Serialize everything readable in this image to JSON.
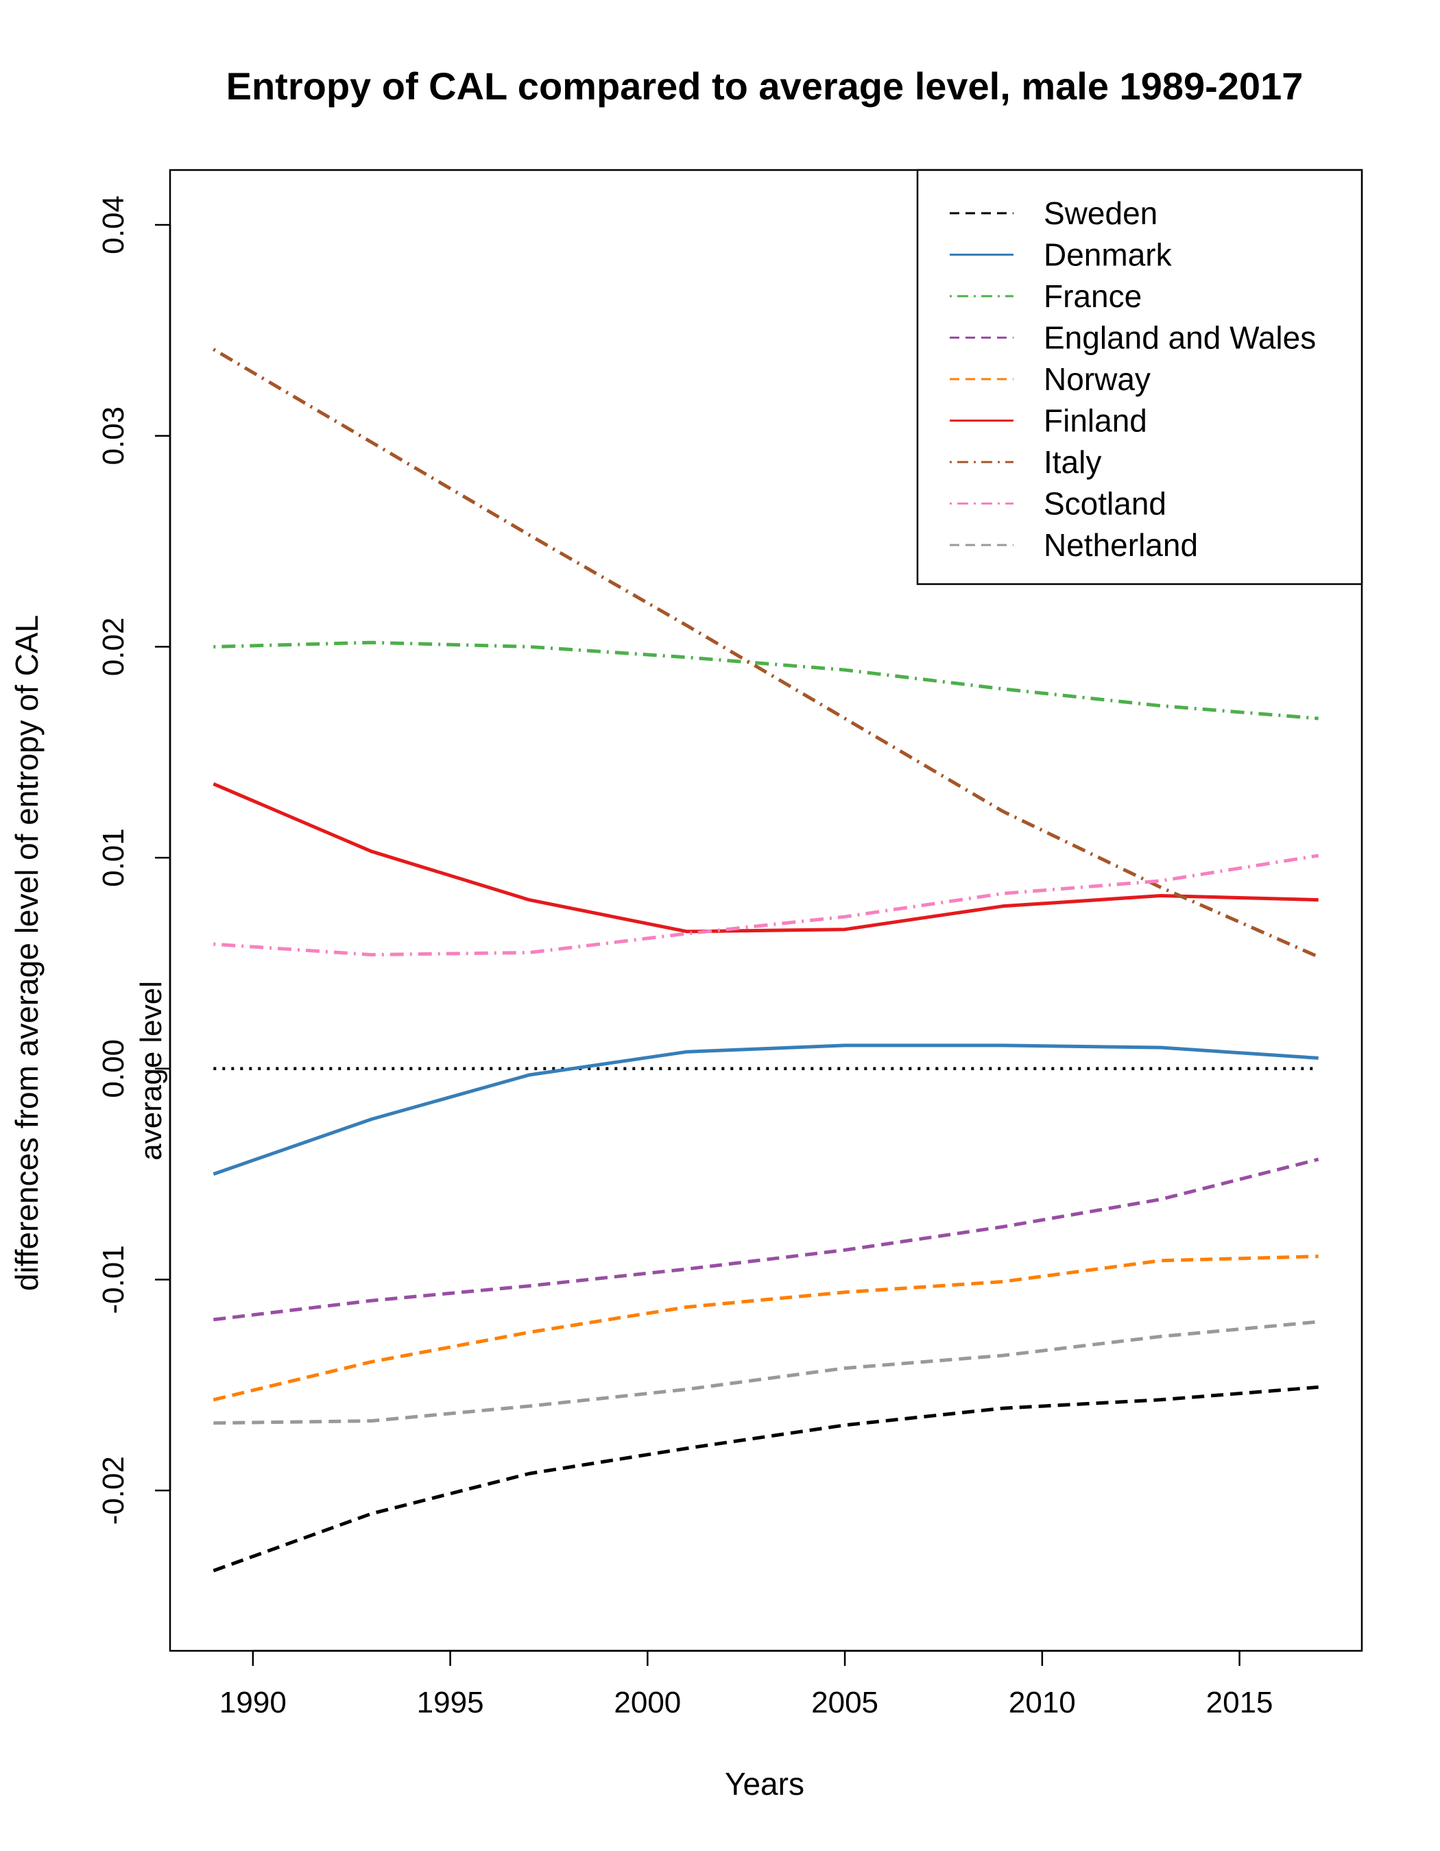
{
  "chart_data": {
    "type": "line",
    "title": "Entropy of CAL compared to average level, male 1989-2017",
    "xlabel": "Years",
    "ylabel": "differences from average level of entropy of CAL",
    "xlim": [
      1987.9,
      2018.1
    ],
    "ylim": [
      -0.0276,
      0.0426
    ],
    "xticks": [
      1990,
      1995,
      2000,
      2005,
      2010,
      2015
    ],
    "yticks": [
      -0.02,
      -0.01,
      0.0,
      0.01,
      0.02,
      0.03,
      0.04
    ],
    "ytick_labels": [
      "-0.02",
      "-0.01",
      "0.00",
      "0.01",
      "0.02",
      "0.03",
      "0.04"
    ],
    "grid": false,
    "legend_position": "top-right",
    "reference_line": {
      "label": "average level",
      "y": 0.0,
      "color": "#000000",
      "dash": "dotted"
    },
    "x": [
      1989,
      1993,
      1997,
      2001,
      2005,
      2009,
      2013,
      2017
    ],
    "series": [
      {
        "name": "Sweden",
        "color": "#000000",
        "dash": "dashed",
        "values": [
          -0.0238,
          -0.0211,
          -0.0192,
          -0.018,
          -0.0169,
          -0.0161,
          -0.0157,
          -0.0151
        ]
      },
      {
        "name": "Denmark",
        "color": "#377EB8",
        "dash": "solid",
        "values": [
          -0.005,
          -0.0024,
          -0.0003,
          0.0008,
          0.0011,
          0.0011,
          0.001,
          0.0005
        ]
      },
      {
        "name": "France",
        "color": "#4DAF4A",
        "dash": "dotdash",
        "values": [
          0.02,
          0.0202,
          0.02,
          0.0195,
          0.0189,
          0.018,
          0.0172,
          0.0166
        ]
      },
      {
        "name": "England and Wales",
        "color": "#984EA3",
        "dash": "dashed",
        "values": [
          -0.0119,
          -0.011,
          -0.0103,
          -0.0095,
          -0.0086,
          -0.0075,
          -0.0062,
          -0.0043
        ]
      },
      {
        "name": "Norway",
        "color": "#FF7F00",
        "dash": "dashed",
        "values": [
          -0.0157,
          -0.0139,
          -0.0125,
          -0.0113,
          -0.0106,
          -0.0101,
          -0.0091,
          -0.0089
        ]
      },
      {
        "name": "Finland",
        "color": "#E41A1C",
        "dash": "solid",
        "values": [
          0.0135,
          0.0103,
          0.008,
          0.0065,
          0.0066,
          0.0077,
          0.0082,
          0.008
        ]
      },
      {
        "name": "Italy",
        "color": "#A65628",
        "dash": "dotdash",
        "values": [
          0.0341,
          0.0297,
          0.0253,
          0.021,
          0.0166,
          0.0122,
          0.0086,
          0.0053
        ]
      },
      {
        "name": "Scotland",
        "color": "#F781BF",
        "dash": "dotdash",
        "values": [
          0.0059,
          0.0054,
          0.0055,
          0.0064,
          0.0072,
          0.0083,
          0.0089,
          0.0101
        ]
      },
      {
        "name": "Netherland",
        "color": "#999999",
        "dash": "dashed",
        "values": [
          -0.0168,
          -0.0167,
          -0.016,
          -0.0152,
          -0.0142,
          -0.0136,
          -0.0127,
          -0.012
        ]
      }
    ]
  }
}
